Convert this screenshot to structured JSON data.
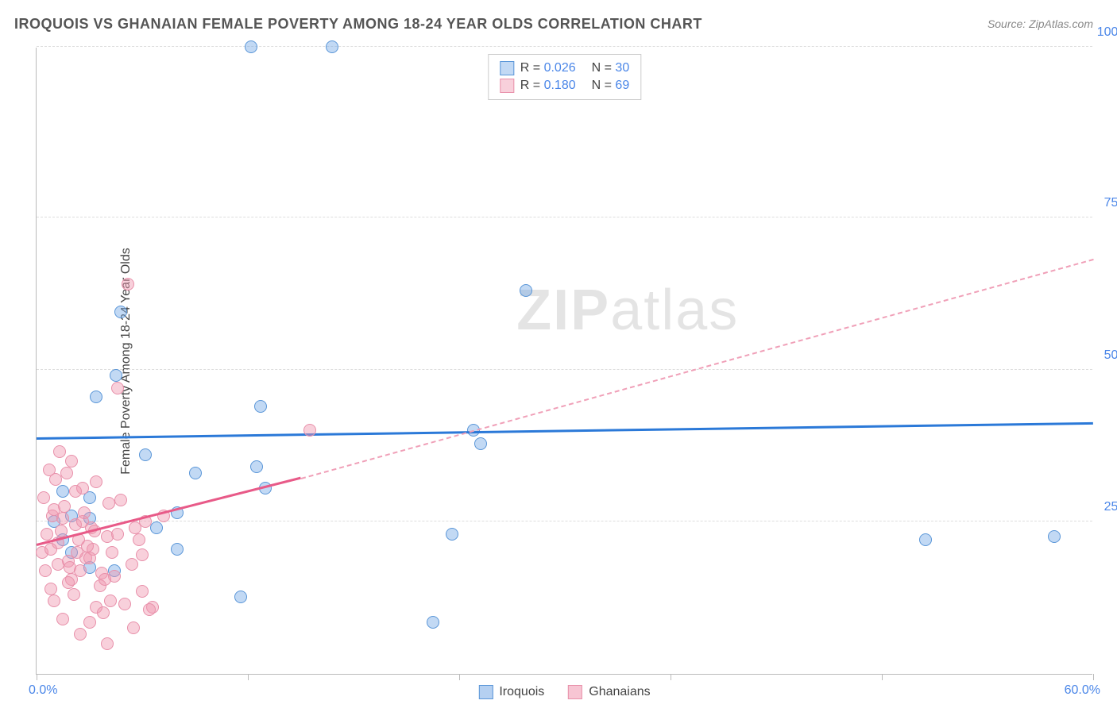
{
  "title": "IROQUOIS VS GHANAIAN FEMALE POVERTY AMONG 18-24 YEAR OLDS CORRELATION CHART",
  "source": "Source: ZipAtlas.com",
  "watermark": "ZIPatlas",
  "y_axis_title": "Female Poverty Among 18-24 Year Olds",
  "chart": {
    "type": "scatter",
    "background_color": "#ffffff",
    "grid_color": "#dddddd",
    "axis_color": "#bbbbbb",
    "xlim": [
      0,
      60
    ],
    "ylim": [
      0,
      103
    ],
    "x_ticks": [
      0,
      12,
      24,
      36,
      48,
      60
    ],
    "x_tick_labels": {
      "0": "0.0%",
      "60": "60.0%"
    },
    "y_gridlines": [
      25,
      50,
      75,
      103
    ],
    "y_tick_labels": {
      "25": "25.0%",
      "50": "50.0%",
      "75": "75.0%",
      "103": "100.0%"
    },
    "tick_label_color": "#4a86e8",
    "tick_label_fontsize": 16,
    "marker_radius": 8,
    "marker_border_width": 1.5,
    "series": [
      {
        "name": "Iroquois",
        "fill_color": "rgba(120,170,230,0.45)",
        "border_color": "#5a96d8",
        "R": "0.026",
        "N": "30",
        "trend": {
          "x0": 0,
          "y0": 38.5,
          "x1": 60,
          "y1": 41,
          "color": "#2b79d8",
          "width": 3,
          "dash": "solid"
        },
        "points": [
          [
            12.2,
            103
          ],
          [
            16.8,
            103
          ],
          [
            27.8,
            63
          ],
          [
            24.8,
            40
          ],
          [
            23.6,
            23
          ],
          [
            50.5,
            22
          ],
          [
            57.8,
            22.5
          ],
          [
            25.2,
            37.8
          ],
          [
            12.5,
            34
          ],
          [
            9.0,
            33
          ],
          [
            3.4,
            45.5
          ],
          [
            3.0,
            25.5
          ],
          [
            6.2,
            36
          ],
          [
            4.5,
            49
          ],
          [
            4.8,
            59.5
          ],
          [
            6.8,
            24
          ],
          [
            8.0,
            20.5
          ],
          [
            11.6,
            12.7
          ],
          [
            3.0,
            29
          ],
          [
            1.5,
            30
          ],
          [
            4.4,
            17
          ],
          [
            1.0,
            25
          ],
          [
            2.0,
            26
          ],
          [
            12.7,
            44
          ],
          [
            13.0,
            30.5
          ],
          [
            22.5,
            8.5
          ],
          [
            2.0,
            20
          ],
          [
            8.0,
            26.5
          ],
          [
            3.0,
            17.5
          ],
          [
            1.5,
            22
          ]
        ]
      },
      {
        "name": "Ghanaians",
        "fill_color": "rgba(240,150,175,0.45)",
        "border_color": "#e890aa",
        "R": "0.180",
        "N": "69",
        "trend_solid": {
          "x0": 0,
          "y0": 21,
          "x1": 15,
          "y1": 32,
          "color": "#e85a88",
          "width": 3
        },
        "trend_dash": {
          "x0": 15,
          "y0": 32,
          "x1": 60,
          "y1": 68,
          "color": "#f0a0b8",
          "width": 2
        },
        "points": [
          [
            5.2,
            64
          ],
          [
            4.6,
            47
          ],
          [
            15.5,
            40
          ],
          [
            7.2,
            26
          ],
          [
            6.0,
            13.5
          ],
          [
            6.6,
            11
          ],
          [
            3.0,
            8.5
          ],
          [
            4.0,
            5
          ],
          [
            2.5,
            6.5
          ],
          [
            1.5,
            9
          ],
          [
            5.5,
            7.5
          ],
          [
            3.4,
            11
          ],
          [
            1.0,
            12
          ],
          [
            0.8,
            14
          ],
          [
            2.0,
            15.5
          ],
          [
            0.5,
            17
          ],
          [
            1.8,
            18.5
          ],
          [
            0.3,
            20
          ],
          [
            1.2,
            21.5
          ],
          [
            0.6,
            23
          ],
          [
            2.2,
            24.5
          ],
          [
            0.9,
            26
          ],
          [
            1.6,
            27.5
          ],
          [
            0.4,
            29
          ],
          [
            2.6,
            30.5
          ],
          [
            1.1,
            32
          ],
          [
            0.7,
            33.5
          ],
          [
            2.0,
            35
          ],
          [
            1.3,
            36.5
          ],
          [
            3.2,
            20.5
          ],
          [
            2.8,
            19
          ],
          [
            1.9,
            17.5
          ],
          [
            4.4,
            16
          ],
          [
            3.6,
            14.5
          ],
          [
            2.1,
            13
          ],
          [
            5.0,
            11.5
          ],
          [
            3.8,
            10
          ],
          [
            6.4,
            10.5
          ],
          [
            4.2,
            12
          ],
          [
            1.4,
            23.5
          ],
          [
            2.4,
            22
          ],
          [
            0.8,
            20.5
          ],
          [
            3.0,
            19
          ],
          [
            2.6,
            25
          ],
          [
            1.0,
            27
          ],
          [
            4.8,
            28.5
          ],
          [
            2.2,
            30
          ],
          [
            3.4,
            31.5
          ],
          [
            1.7,
            33
          ],
          [
            5.6,
            24
          ],
          [
            4.0,
            22.5
          ],
          [
            2.9,
            21
          ],
          [
            6.0,
            19.5
          ],
          [
            3.1,
            24
          ],
          [
            1.5,
            25.5
          ],
          [
            4.6,
            23
          ],
          [
            2.3,
            20
          ],
          [
            5.4,
            18
          ],
          [
            3.7,
            16.5
          ],
          [
            1.8,
            15
          ],
          [
            4.1,
            28
          ],
          [
            2.7,
            26.5
          ],
          [
            6.2,
            25
          ],
          [
            3.3,
            23.5
          ],
          [
            5.8,
            22
          ],
          [
            1.2,
            18
          ],
          [
            4.3,
            20
          ],
          [
            2.5,
            17
          ],
          [
            3.9,
            15.5
          ]
        ]
      }
    ]
  },
  "legend_bottom": [
    {
      "label": "Iroquois",
      "fill": "rgba(120,170,230,0.55)",
      "border": "#5a96d8"
    },
    {
      "label": "Ghanaians",
      "fill": "rgba(240,150,175,0.55)",
      "border": "#e890aa"
    }
  ]
}
